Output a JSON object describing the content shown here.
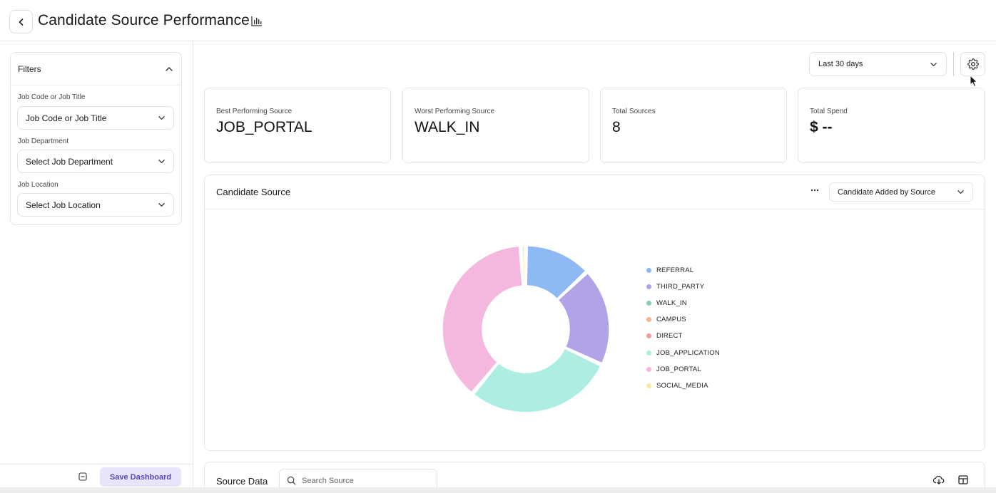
{
  "header": {
    "title": "Candidate Source Performance",
    "back_icon": "chevron-left-icon",
    "title_icon": "bar-chart-icon"
  },
  "filters": {
    "title": "Filters",
    "items": [
      {
        "label": "Job Code or Job Title",
        "value": "Job Code or Job Title"
      },
      {
        "label": "Job Department",
        "value": "Select Job Department"
      },
      {
        "label": "Job Location",
        "value": "Select Job Location"
      }
    ]
  },
  "footer": {
    "save_label": "Save Dashboard"
  },
  "toolbar": {
    "date_range": "Last 30 days",
    "settings_icon": "gear-icon"
  },
  "kpis": [
    {
      "label": "Best Performing Source",
      "value": "JOB_PORTAL"
    },
    {
      "label": "Worst Performing Source",
      "value": "WALK_IN"
    },
    {
      "label": "Total Sources",
      "value": "8"
    },
    {
      "label": "Total Spend",
      "value": "$ --"
    }
  ],
  "chart_card": {
    "title": "Candidate Source",
    "metric": "Candidate Added by Source"
  },
  "chart_data": {
    "type": "pie",
    "donut": true,
    "categories": [
      "REFERRAL",
      "THIRD_PARTY",
      "WALK_IN",
      "CAMPUS",
      "DIRECT",
      "JOB_APPLICATION",
      "JOB_PORTAL",
      "SOCIAL_MEDIA"
    ],
    "values": [
      13,
      19,
      0,
      0,
      0,
      29,
      38,
      1
    ],
    "colors": [
      "#8fb9f5",
      "#b1a3e6",
      "#8ecbad",
      "#f2b48f",
      "#ee9aa0",
      "#aeeee2",
      "#f4b8de",
      "#f7e6a6"
    ],
    "legend_position": "right"
  },
  "source_data": {
    "title": "Source Data",
    "search_placeholder": "Search Source"
  }
}
